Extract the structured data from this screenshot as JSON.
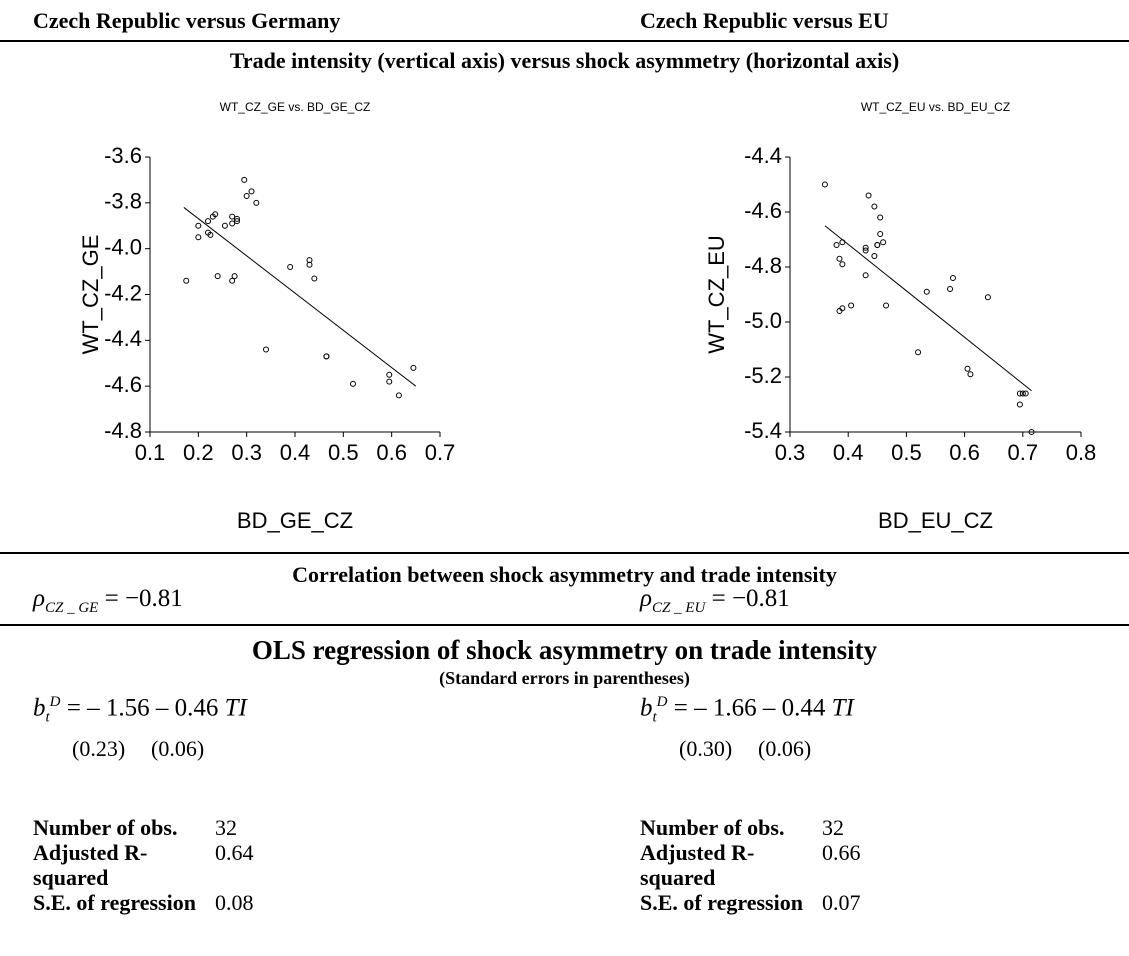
{
  "headers": [
    "Czech Republic versus Germany",
    "Czech Republic versus EU"
  ],
  "subtitle": "Trade intensity (vertical axis) versus shock asymmetry (horizontal axis)",
  "chart_data": [
    {
      "type": "scatter",
      "title": "WT_CZ_GE vs. BD_GE_CZ",
      "x_label": "BD_GE_CZ",
      "y_label": "WT_CZ_GE",
      "color": "#000000",
      "x": [
        0.175,
        0.2,
        0.2,
        0.22,
        0.22,
        0.225,
        0.23,
        0.235,
        0.24,
        0.255,
        0.27,
        0.27,
        0.27,
        0.275,
        0.28,
        0.28,
        0.295,
        0.3,
        0.31,
        0.32,
        0.34,
        0.39,
        0.43,
        0.43,
        0.44,
        0.465,
        0.465,
        0.52,
        0.595,
        0.595,
        0.615,
        0.645
      ],
      "y": [
        -4.14,
        -3.9,
        -3.95,
        -3.88,
        -3.93,
        -3.94,
        -3.86,
        -3.85,
        -4.12,
        -3.9,
        -3.86,
        -3.89,
        -4.14,
        -4.12,
        -3.88,
        -3.87,
        -3.7,
        -3.77,
        -3.75,
        -3.8,
        -4.44,
        -4.08,
        -4.05,
        -4.07,
        -4.13,
        -4.47,
        -4.47,
        -4.59,
        -4.55,
        -4.58,
        -4.64,
        -4.52
      ],
      "fit": {
        "x": [
          0.17,
          0.65
        ],
        "y": [
          -3.82,
          -4.6
        ]
      },
      "xlim": [
        0.1,
        0.7
      ],
      "ylim": [
        -4.8,
        -3.6
      ],
      "xticks": [
        0.1,
        0.2,
        0.3,
        0.4,
        0.5,
        0.6,
        0.7
      ],
      "yticks": [
        -3.6,
        -3.8,
        {
          "value": -4,
          "label": "-4.0"
        },
        -4.2,
        -4.4,
        -4.6,
        -4.8
      ]
    },
    {
      "type": "scatter",
      "title": "WT_CZ_EU vs. BD_EU_CZ",
      "x_label": "BD_EU_CZ",
      "y_label": "WT_CZ_EU",
      "color": "#000000",
      "x": [
        0.36,
        0.38,
        0.385,
        0.385,
        0.39,
        0.39,
        0.39,
        0.405,
        0.43,
        0.43,
        0.43,
        0.435,
        0.445,
        0.445,
        0.45,
        0.45,
        0.455,
        0.455,
        0.46,
        0.465,
        0.52,
        0.535,
        0.575,
        0.58,
        0.605,
        0.61,
        0.64,
        0.695,
        0.695,
        0.7,
        0.705,
        0.715
      ],
      "y": [
        -4.5,
        -4.72,
        -4.77,
        -4.96,
        -4.71,
        -4.95,
        -4.79,
        -4.94,
        -4.73,
        -4.74,
        -4.83,
        -4.54,
        -4.76,
        -4.58,
        -4.72,
        -4.72,
        -4.62,
        -4.68,
        -4.71,
        -4.94,
        -5.11,
        -4.89,
        -4.88,
        -4.84,
        -5.17,
        -5.19,
        -4.91,
        -5.26,
        -5.3,
        -5.26,
        -5.26,
        -5.4
      ],
      "fit": {
        "x": [
          0.36,
          0.715
        ],
        "y": [
          -4.65,
          -5.25
        ]
      },
      "xlim": [
        0.3,
        0.8
      ],
      "ylim": [
        -5.4,
        -4.4
      ],
      "xticks": [
        0.3,
        0.4,
        0.5,
        0.6,
        0.7,
        0.8
      ],
      "yticks": [
        -4.4,
        -4.6,
        -4.8,
        {
          "value": -5,
          "label": "-5.0"
        },
        -5.2,
        -5.4
      ]
    }
  ],
  "correlation": {
    "title": "Correlation between shock asymmetry and trade intensity",
    "items": [
      {
        "symbol": "ρ",
        "subscript": "CZ _ GE",
        "text": "= −0.81"
      },
      {
        "symbol": "ρ",
        "subscript": "CZ _ EU",
        "text": "= −0.81"
      }
    ]
  },
  "regression": {
    "title": "OLS regression of shock asymmetry on trade intensity",
    "note": "(Standard errors in parentheses)",
    "items": [
      {
        "lhs": "b",
        "subscript": "t",
        "superscript": "D",
        "equation": "= – 1.56 – 0.46",
        "variable": "TI",
        "errors": [
          "(0.23)",
          "(0.06)"
        ],
        "stats": [
          [
            "Number of obs.",
            "32"
          ],
          [
            "Adjusted R-squared",
            "0.64"
          ],
          [
            "S.E. of regression",
            "0.08"
          ]
        ]
      },
      {
        "lhs": "b",
        "subscript": "t",
        "superscript": "D",
        "equation": "= – 1.66 – 0.44",
        "variable": "TI",
        "errors": [
          "(0.30)",
          "(0.06)"
        ],
        "stats": [
          [
            "Number of obs.",
            "32"
          ],
          [
            "Adjusted R-squared",
            "0.66"
          ],
          [
            "S.E. of regression",
            "0.07"
          ]
        ]
      }
    ]
  }
}
